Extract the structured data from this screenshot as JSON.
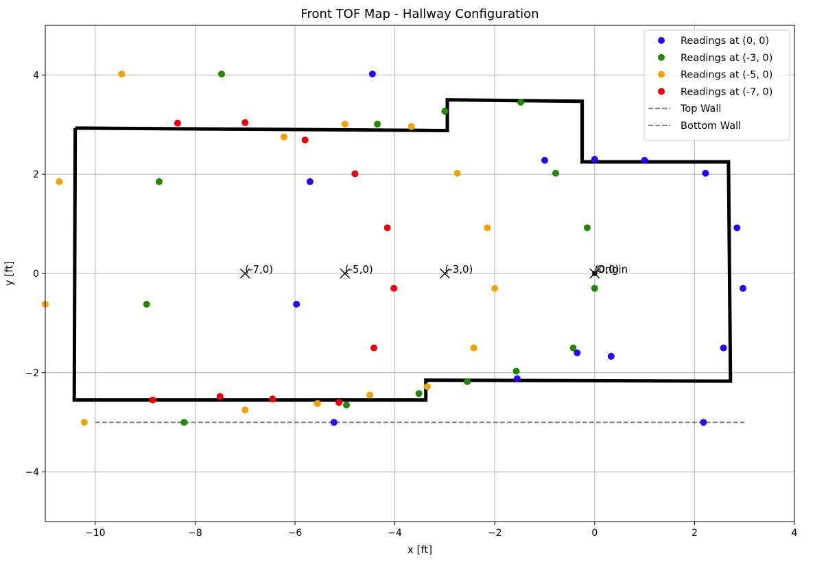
{
  "chart_data": {
    "type": "scatter",
    "title": "Front TOF Map - Hallway Configuration",
    "xlabel": "x [ft]",
    "ylabel": "y [ft]",
    "xlim": [
      -11,
      4
    ],
    "ylim": [
      -5,
      5
    ],
    "x_ticks": [
      -10,
      -8,
      -6,
      -4,
      -2,
      0,
      2,
      4
    ],
    "y_ticks": [
      -4,
      -2,
      0,
      2,
      4
    ],
    "x_tick_labels": [
      "−10",
      "−8",
      "−6",
      "−4",
      "−2",
      "0",
      "2",
      "4"
    ],
    "y_tick_labels": [
      "−4",
      "−2",
      "0",
      "2",
      "4"
    ],
    "grid": true,
    "legend_position": "upper right",
    "series": [
      {
        "name": "Readings at (0, 0)",
        "color": "#2a00ff",
        "points": [
          [
            -4.45,
            4.02
          ],
          [
            -1.0,
            2.28
          ],
          [
            0.0,
            2.3
          ],
          [
            1.0,
            2.28
          ],
          [
            2.22,
            2.02
          ],
          [
            2.85,
            0.92
          ],
          [
            2.97,
            -0.3
          ],
          [
            -5.7,
            1.85
          ],
          [
            -5.97,
            -0.62
          ],
          [
            -5.22,
            -3.0
          ],
          [
            -1.55,
            -2.12
          ],
          [
            -0.35,
            -1.6
          ],
          [
            0.33,
            -1.67
          ],
          [
            2.58,
            -1.5
          ],
          [
            2.18,
            -3.0
          ]
        ]
      },
      {
        "name": "Readings at (-3, 0)",
        "color": "#228800",
        "points": [
          [
            -7.47,
            4.02
          ],
          [
            -4.35,
            3.01
          ],
          [
            -3.0,
            3.27
          ],
          [
            -1.48,
            3.45
          ],
          [
            -8.72,
            1.85
          ],
          [
            -0.78,
            2.02
          ],
          [
            -0.15,
            0.92
          ],
          [
            -8.97,
            -0.62
          ],
          [
            0.0,
            -0.3
          ],
          [
            -0.43,
            -1.5
          ],
          [
            -1.57,
            -1.97
          ],
          [
            -2.55,
            -2.18
          ],
          [
            -3.52,
            -2.42
          ],
          [
            -4.97,
            -2.65
          ],
          [
            -8.22,
            -3.0
          ]
        ]
      },
      {
        "name": "Readings at (-5, 0)",
        "color": "#f5a000",
        "points": [
          [
            -9.47,
            4.02
          ],
          [
            -5.0,
            3.01
          ],
          [
            -3.67,
            2.96
          ],
          [
            -6.22,
            2.75
          ],
          [
            -10.72,
            1.85
          ],
          [
            -2.75,
            2.02
          ],
          [
            -2.15,
            0.92
          ],
          [
            -11.0,
            -0.62
          ],
          [
            -2.0,
            -0.3
          ],
          [
            -2.42,
            -1.5
          ],
          [
            -3.35,
            -2.28
          ],
          [
            -4.5,
            -2.45
          ],
          [
            -5.55,
            -2.62
          ],
          [
            -7.0,
            -2.75
          ],
          [
            -10.22,
            -3.0
          ]
        ]
      },
      {
        "name": "Readings at (-7, 0)",
        "color": "#ee0000",
        "points": [
          [
            -8.35,
            3.03
          ],
          [
            -7.0,
            3.04
          ],
          [
            -5.8,
            2.69
          ],
          [
            -4.8,
            2.01
          ],
          [
            -4.15,
            0.92
          ],
          [
            -4.02,
            -0.3
          ],
          [
            -4.42,
            -1.5
          ],
          [
            -5.12,
            -2.6
          ],
          [
            -6.45,
            -2.53
          ],
          [
            -7.5,
            -2.48
          ],
          [
            -8.85,
            -2.55
          ]
        ]
      }
    ],
    "reference_lines": [
      {
        "name": "Top Wall",
        "style": "dashed",
        "color": "#808080",
        "points": []
      },
      {
        "name": "Bottom Wall",
        "style": "dashed",
        "color": "#808080",
        "points": [
          [
            -10.0,
            -3.0
          ],
          [
            3.0,
            -3.0
          ]
        ]
      }
    ],
    "outline": {
      "color": "#000000",
      "points": [
        [
          -10.4,
          2.93
        ],
        [
          -2.95,
          2.88
        ],
        [
          -2.95,
          3.5
        ],
        [
          -0.25,
          3.47
        ],
        [
          -0.25,
          2.25
        ],
        [
          2.68,
          2.25
        ],
        [
          2.72,
          -2.17
        ],
        [
          -3.38,
          -2.15
        ],
        [
          -3.38,
          -2.55
        ],
        [
          -10.42,
          -2.55
        ],
        [
          -10.4,
          2.93
        ]
      ]
    },
    "markers": [
      {
        "label": "(-7,0)",
        "x": -7,
        "y": 0
      },
      {
        "label": "(-5,0)",
        "x": -5,
        "y": 0
      },
      {
        "label": "(-3,0)",
        "x": -3,
        "y": 0
      },
      {
        "label": "(0,0)",
        "x": 0,
        "y": 0
      }
    ],
    "origin": {
      "label": "Origin",
      "x": 0,
      "y": 0
    }
  }
}
